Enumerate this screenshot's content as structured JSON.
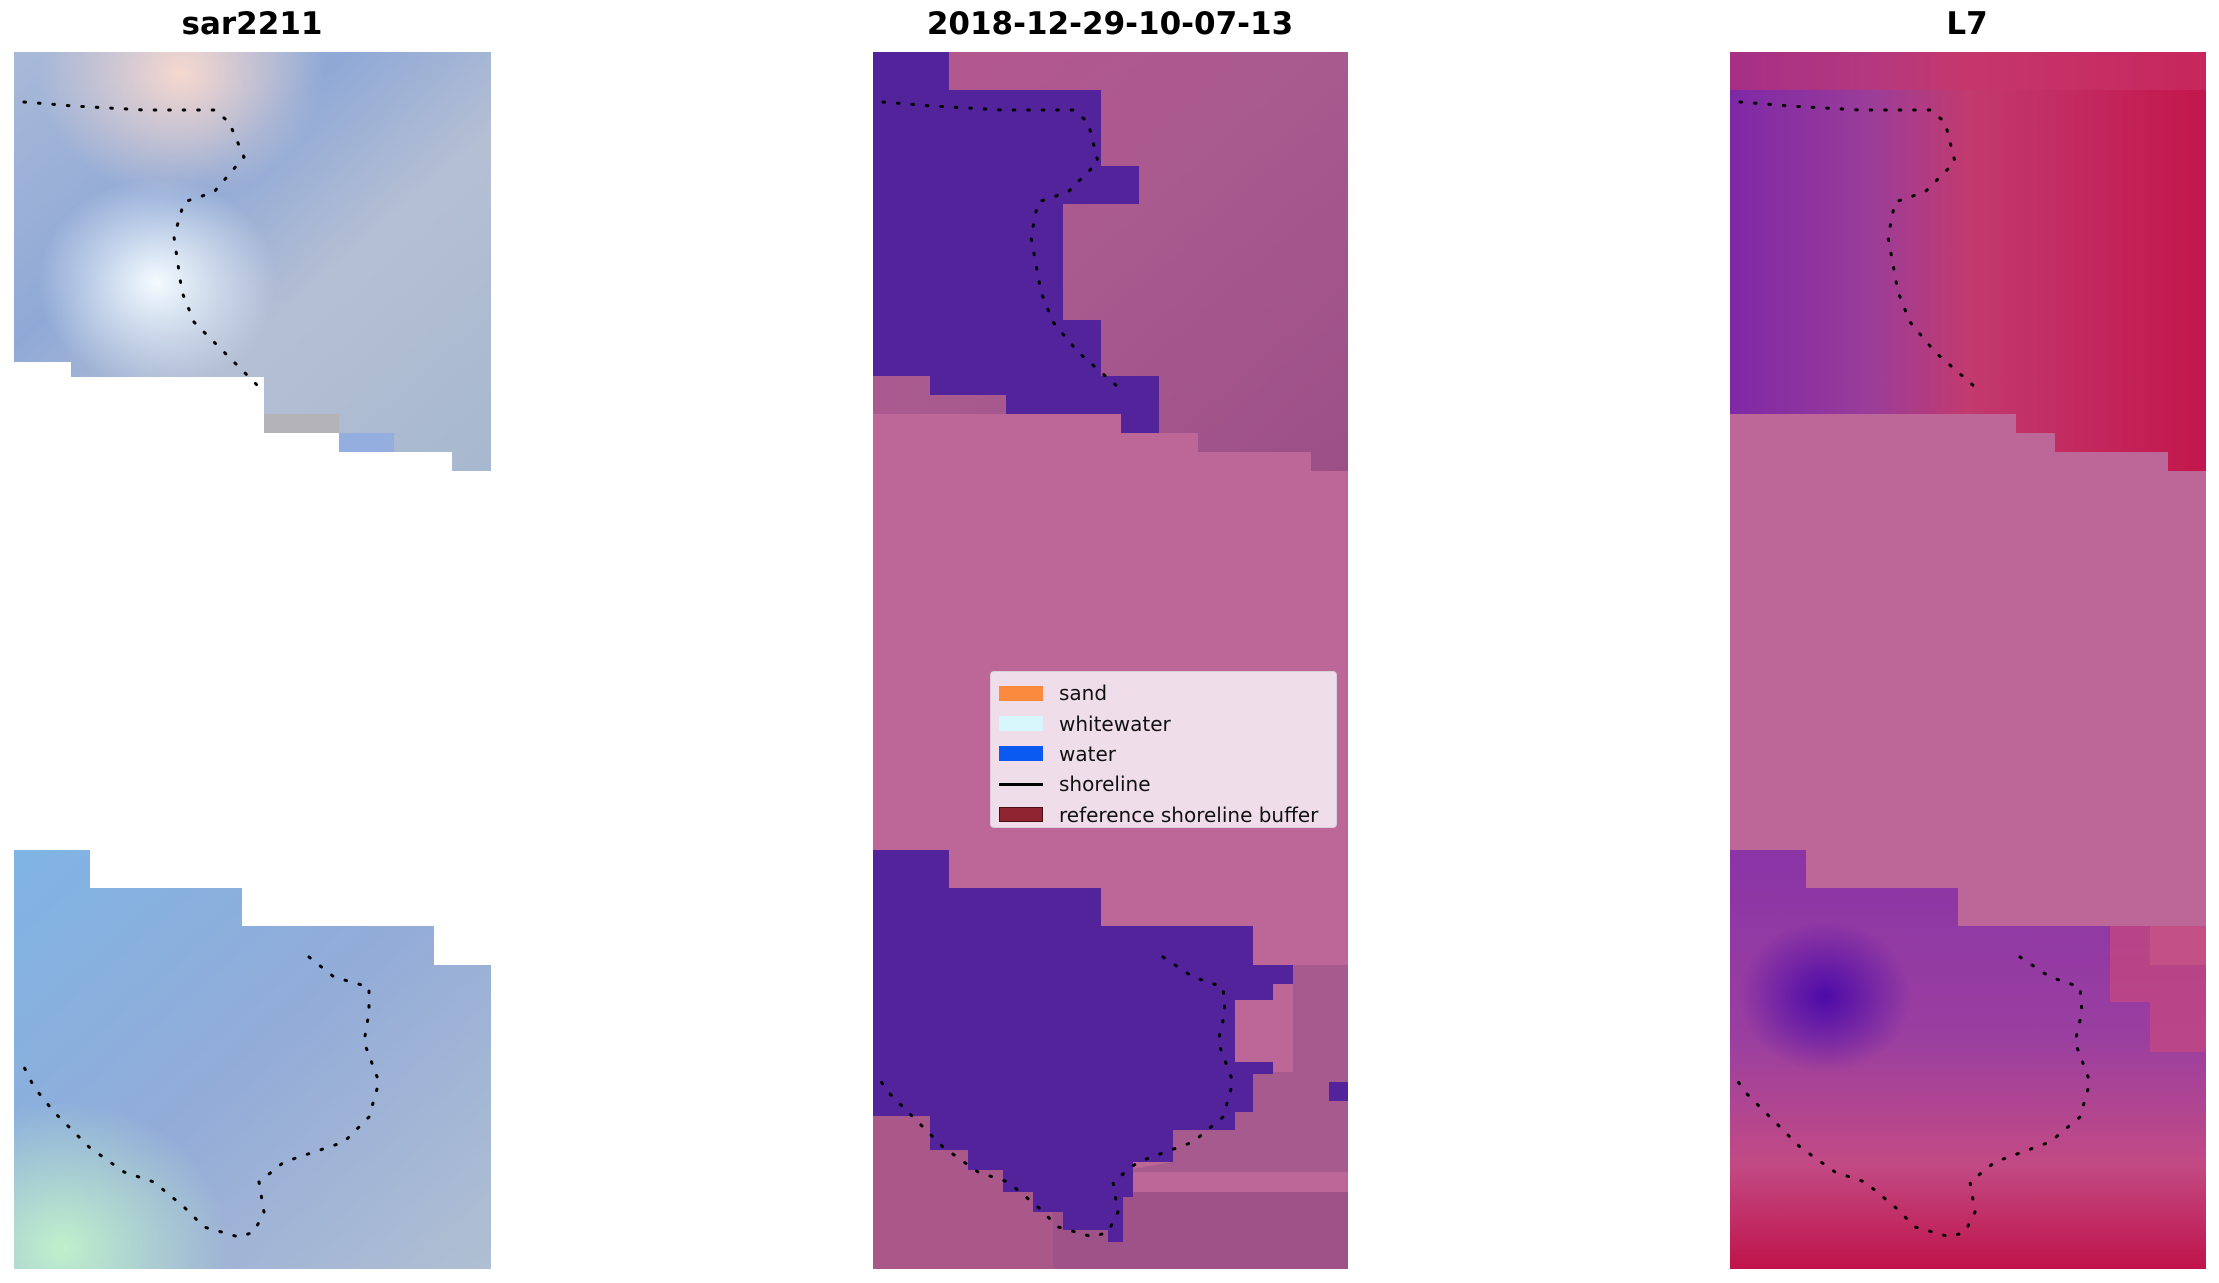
{
  "panels": [
    {
      "title": "sar2211",
      "kind": "rgb"
    },
    {
      "title": "2018-12-29-10-07-13",
      "kind": "classified"
    },
    {
      "title": "L7",
      "kind": "index"
    }
  ],
  "legend": {
    "items": [
      {
        "label": "sand",
        "color": "#f98a3e",
        "type": "patch"
      },
      {
        "label": "whitewater",
        "color": "#d7f7fc",
        "type": "patch"
      },
      {
        "label": "water",
        "color": "#0a5af2",
        "type": "patch"
      },
      {
        "label": "shoreline",
        "color": "#000000",
        "type": "line"
      },
      {
        "label": "reference shoreline buffer",
        "color": "#8e2430",
        "type": "patch"
      }
    ]
  },
  "colors": {
    "no_data": "#bd6798",
    "classified_water": "#52239a",
    "classified_land": "#a4578c",
    "index_high": "#c0134a",
    "index_low": "#6b1ea6",
    "shoreline_dots": "#000000"
  }
}
